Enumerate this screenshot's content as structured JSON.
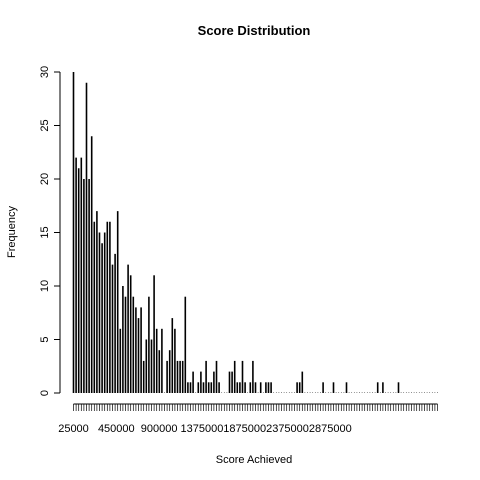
{
  "chart_data": {
    "type": "bar",
    "title": "Score Distribution",
    "xlabel": "Score Achieved",
    "ylabel": "Frequency",
    "ylim": [
      0,
      30
    ],
    "y_ticks": [
      0,
      5,
      10,
      15,
      20,
      25,
      30
    ],
    "x_tick_labels": [
      "25000",
      "450000",
      "900000",
      "1375000",
      "1875000",
      "2375000",
      "2875000"
    ],
    "bar_color": "#000000",
    "grid": false,
    "legend": "none",
    "values": [
      30,
      22,
      21,
      22,
      20,
      29,
      20,
      24,
      16,
      17,
      15,
      14,
      15,
      16,
      16,
      12,
      13,
      17,
      6,
      10,
      9,
      12,
      11,
      9,
      8,
      7,
      8,
      3,
      5,
      9,
      5,
      11,
      6,
      4,
      6,
      0,
      3,
      4,
      7,
      6,
      3,
      3,
      3,
      9,
      1,
      1,
      2,
      0,
      1,
      2,
      1,
      3,
      1,
      1,
      2,
      3,
      1,
      0,
      0,
      0,
      2,
      2,
      3,
      1,
      1,
      3,
      1,
      0,
      1,
      3,
      1,
      0,
      1,
      0,
      1,
      1,
      1,
      0,
      0,
      0,
      0,
      0,
      0,
      0,
      0,
      0,
      1,
      1,
      2,
      0,
      0,
      0,
      0,
      0,
      0,
      0,
      1,
      0,
      0,
      0,
      1,
      0,
      0,
      0,
      0,
      1,
      0,
      0,
      0,
      0,
      0,
      0,
      0,
      0,
      0,
      0,
      0,
      1,
      0,
      1,
      0,
      0,
      0,
      0,
      0,
      1,
      0,
      0,
      0,
      0,
      0,
      0,
      0,
      0,
      0,
      0,
      0,
      0,
      0,
      0,
      0
    ]
  }
}
